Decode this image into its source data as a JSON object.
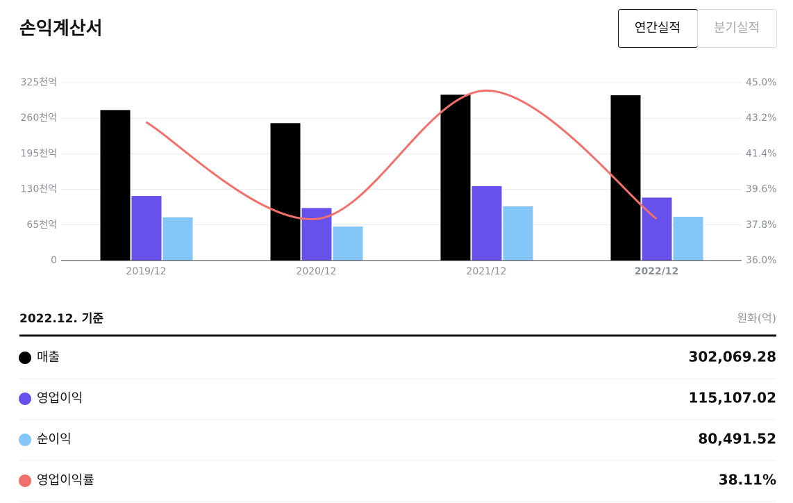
{
  "header": {
    "title": "손익계산서",
    "tabs": [
      "연간실적",
      "분기실적"
    ]
  },
  "chart_data": {
    "type": "bar-line",
    "categories": [
      "2019/12",
      "2020/12",
      "2021/12",
      "2022/12"
    ],
    "series": [
      {
        "name": "매출",
        "color": "#000000",
        "values": [
          275,
          251,
          303,
          302
        ]
      },
      {
        "name": "영업이익",
        "color": "#6651ea",
        "values": [
          118,
          96,
          136,
          115
        ]
      },
      {
        "name": "순이익",
        "color": "#84c6f7",
        "values": [
          79,
          62,
          99,
          80
        ]
      },
      {
        "name": "영업이익률",
        "color": "#f2706b",
        "axis": "y2",
        "type": "line",
        "values": [
          43.0,
          38.1,
          44.6,
          38.11
        ]
      }
    ],
    "ylim": [
      0,
      325
    ],
    "yticks": [
      0,
      {
        "value": 65,
        "label": "65천억"
      },
      {
        "value": 130,
        "label": "130천억"
      },
      {
        "value": 195,
        "label": "195천억"
      },
      {
        "value": 260,
        "label": "260천억"
      },
      {
        "value": 325,
        "label": "325천억"
      }
    ],
    "y2lim": [
      36,
      45
    ],
    "y2ticks": [
      {
        "value": 36,
        "label": "36.0%"
      },
      {
        "value": 37.8,
        "label": "37.8%"
      },
      {
        "value": 39.6,
        "label": "39.6%"
      },
      {
        "value": 41.4,
        "label": "41.4%"
      },
      {
        "value": 43.2,
        "label": "43.2%"
      },
      {
        "value": 45,
        "label": "45.0%"
      }
    ],
    "grid": true
  },
  "table": {
    "as_of": "2022.12. 기준",
    "unit": "원화(억)",
    "rows": [
      {
        "value": "302,069.28"
      },
      {
        "value": "115,107.02"
      },
      {
        "value": "80,491.52"
      },
      {
        "value": "38.11%"
      }
    ]
  }
}
